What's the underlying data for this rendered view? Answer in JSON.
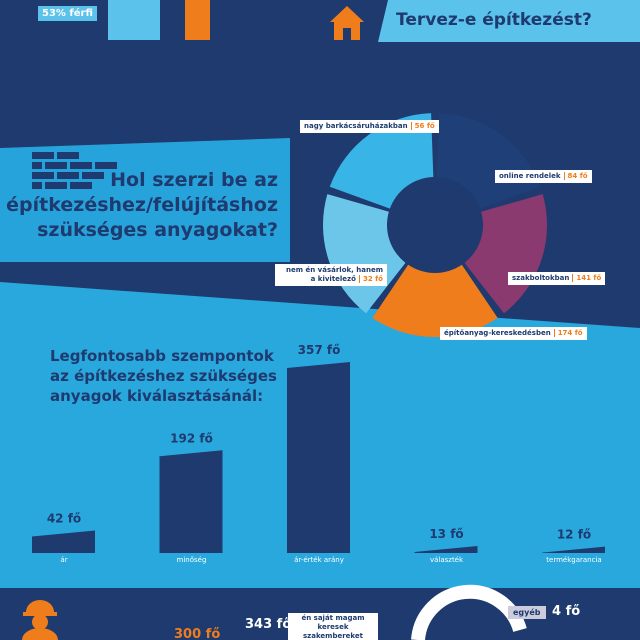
{
  "header": {
    "gender_label": "53% férfi",
    "question": "Tervez-e építkezést?"
  },
  "sources": {
    "title_lines": [
      "Hol szerzi be az",
      "építkezéshez/felújításhoz",
      "szükséges anyagokat?"
    ],
    "segments": [
      {
        "label": "nagy barkácsáruházakban",
        "count": "56 fő"
      },
      {
        "label": "online rendelek",
        "count": "84 fő"
      },
      {
        "label": "szakboltokban",
        "count": "141 fő"
      },
      {
        "label": "építőanyag-kereskedésben",
        "count": "174 fő"
      },
      {
        "label": "nem én vásárlok, hanem a kivitelező",
        "count": "32 fő"
      }
    ]
  },
  "chart_data": {
    "type": "bar",
    "title_lines": [
      "Legfontosabb szempontok",
      "az építkezéshez szükséges",
      "anyagok kiválasztásánál:"
    ],
    "categories": [
      "ár",
      "minőség",
      "ár-érték arány",
      "választék",
      "termékgarancia"
    ],
    "values": [
      42,
      192,
      357,
      13,
      12
    ],
    "value_labels": [
      "42 fő",
      "192 fő",
      "357 fő",
      "13 fő",
      "12 fő"
    ],
    "color": "#1e3a6e",
    "ylim": [
      0,
      400
    ]
  },
  "bottom": {
    "left_count": "300 fő",
    "self_count": "343 fő",
    "self_label": "én saját magam keresek szakembereket",
    "other_label": "egyéb",
    "other_count": "4 fő"
  }
}
